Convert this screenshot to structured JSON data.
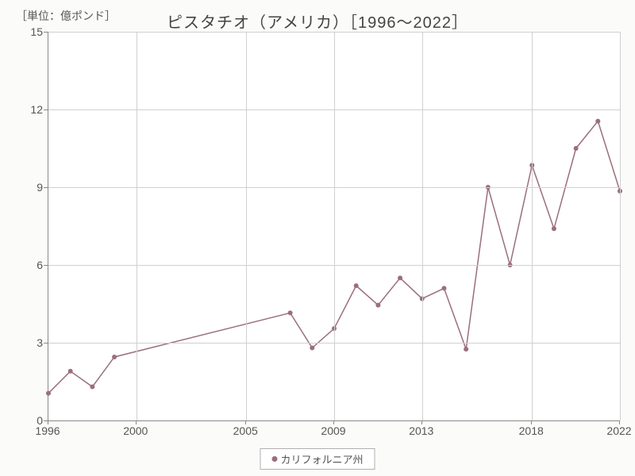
{
  "chart": {
    "type": "line",
    "unit_label": "［単位：億ポンド］",
    "title": "ピスタチオ（アメリカ）［1996～2022］",
    "background_color": "#fbfbf9",
    "plot_background": "#ffffff",
    "grid_color": "#d0d0d0",
    "axis_color": "#888888",
    "text_color": "#555555",
    "title_fontsize": 20,
    "label_fontsize": 14,
    "x": {
      "min": 1996,
      "max": 2022,
      "ticks": [
        1996,
        2000,
        2005,
        2009,
        2013,
        2018,
        2022
      ]
    },
    "y": {
      "min": 0,
      "max": 15,
      "ticks": [
        0,
        3,
        6,
        9,
        12,
        15
      ]
    },
    "series": [
      {
        "name": "カリフォルニア州",
        "color": "#9a6f7b",
        "line_width": 1.5,
        "marker_size": 3,
        "points": [
          {
            "x": 1996,
            "y": 1.05
          },
          {
            "x": 1997,
            "y": 1.9
          },
          {
            "x": 1998,
            "y": 1.3
          },
          {
            "x": 1999,
            "y": 2.45
          },
          {
            "x": 2007,
            "y": 4.15
          },
          {
            "x": 2008,
            "y": 2.8
          },
          {
            "x": 2009,
            "y": 3.55
          },
          {
            "x": 2010,
            "y": 5.2
          },
          {
            "x": 2011,
            "y": 4.45
          },
          {
            "x": 2012,
            "y": 5.5
          },
          {
            "x": 2013,
            "y": 4.7
          },
          {
            "x": 2014,
            "y": 5.1
          },
          {
            "x": 2015,
            "y": 2.75
          },
          {
            "x": 2016,
            "y": 9.0
          },
          {
            "x": 2017,
            "y": 6.0
          },
          {
            "x": 2018,
            "y": 9.85
          },
          {
            "x": 2019,
            "y": 7.4
          },
          {
            "x": 2020,
            "y": 10.5
          },
          {
            "x": 2021,
            "y": 11.55
          },
          {
            "x": 2022,
            "y": 8.85
          }
        ]
      }
    ],
    "legend": {
      "label": "カリフォルニア州"
    }
  }
}
